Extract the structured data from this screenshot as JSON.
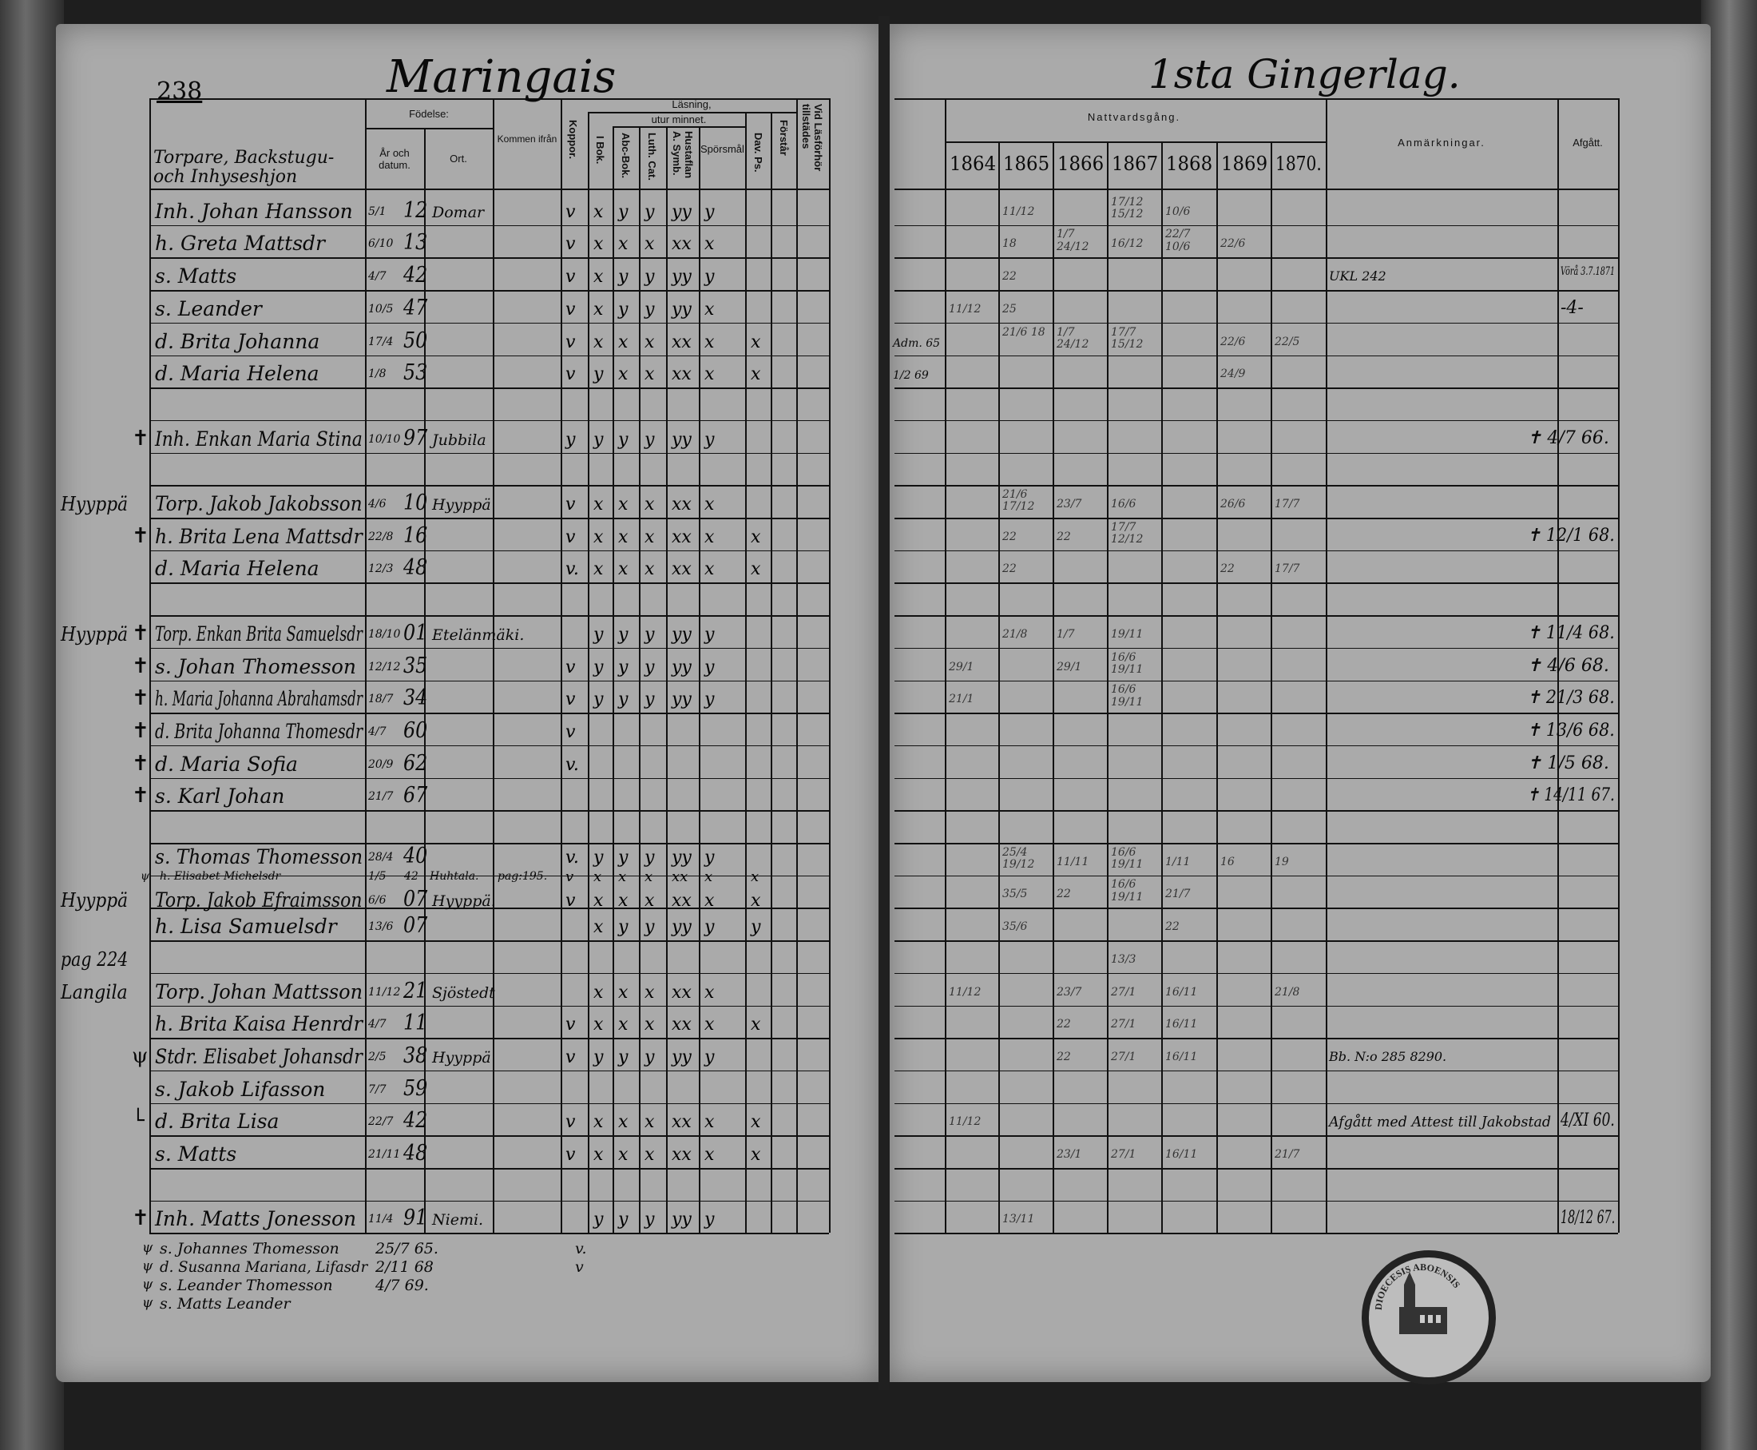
{
  "left_page": {
    "page_number": "238",
    "village": "Maringais",
    "column_title": "Torpare, Backstugu- och Inhyseshjon",
    "headers": {
      "fodelse": "Födelse:",
      "ar": "År och datum.",
      "ort": "Ort.",
      "kommen": "Kommen ifrån",
      "koppor": "Koppor.",
      "lasning": "Läsning,",
      "utur": "utur minnet.",
      "ibok": "I Bok.",
      "abc": "Abc-Bok.",
      "luth": "Luth. Cat.",
      "hust": "Hustaflan A. Symb.",
      "spors": "Spörsmål.",
      "dav": "Dav. Ps.",
      "forstar": "Förstår",
      "vid": "Vid Läsförhör tillstädes"
    },
    "rows": [
      {
        "name": "Inh. Johan Hansson",
        "dm": "5/1",
        "yr": "12",
        "ort": "Domar",
        "kop": "v",
        "r": [
          "x",
          "y",
          "y",
          "yy",
          "y",
          "",
          ""
        ]
      },
      {
        "name": "h. Greta Mattsdr",
        "dm": "6/10",
        "yr": "13",
        "kop": "v",
        "r": [
          "x",
          "x",
          "x",
          "xx",
          "x",
          "",
          ""
        ]
      },
      {
        "name": "s. Matts",
        "dm": "4/7",
        "yr": "42",
        "kop": "v",
        "r": [
          "x",
          "y",
          "y",
          "yy",
          "y",
          "",
          ""
        ]
      },
      {
        "name": "s. Leander",
        "dm": "10/5",
        "yr": "47",
        "kop": "v",
        "r": [
          "x",
          "y",
          "y",
          "yy",
          "x",
          "",
          ""
        ]
      },
      {
        "name": "d. Brita Johanna",
        "dm": "17/4",
        "yr": "50",
        "kop": "v",
        "r": [
          "x",
          "x",
          "x",
          "xx",
          "x",
          "x",
          ""
        ]
      },
      {
        "name": "d. Maria Helena",
        "dm": "1/8",
        "yr": "53",
        "kop": "v",
        "r": [
          "y",
          "x",
          "x",
          "xx",
          "x",
          "x",
          ""
        ]
      },
      {},
      {
        "mark": "✝",
        "name": "Inh. Enkan Maria Stina",
        "dm": "10/10",
        "yr": "97",
        "ort": "Jubbila",
        "kop": "y",
        "r": [
          "y",
          "y",
          "y",
          "yy",
          "y",
          "",
          ""
        ]
      },
      {},
      {
        "margin": "Hyyppä",
        "name": "Torp. Jakob Jakobsson",
        "dm": "4/6",
        "yr": "10",
        "ort": "Hyyppä",
        "kop": "v",
        "r": [
          "x",
          "x",
          "x",
          "xx",
          "x",
          "",
          ""
        ]
      },
      {
        "mark": "✝",
        "name": "h. Brita Lena Mattsdr",
        "dm": "22/8",
        "yr": "16",
        "kop": "v",
        "r": [
          "x",
          "x",
          "x",
          "xx",
          "x",
          "x",
          ""
        ]
      },
      {
        "name": "d. Maria Helena",
        "dm": "12/3",
        "yr": "48",
        "kop": "v.",
        "r": [
          "x",
          "x",
          "x",
          "xx",
          "x",
          "x",
          ""
        ]
      },
      {},
      {
        "margin": "Hyyppä",
        "mark": "✝",
        "name": "Torp. Enkan Brita Samuelsdr",
        "dm": "18/10",
        "yr": "01",
        "ort": "Etelänmäki.",
        "kop": "",
        "r": [
          "y",
          "y",
          "y",
          "yy",
          "y",
          "",
          ""
        ]
      },
      {
        "mark": "✝",
        "name": "s. Johan Thomesson",
        "dm": "12/12",
        "yr": "35",
        "kop": "v",
        "r": [
          "y",
          "y",
          "y",
          "yy",
          "y",
          "",
          ""
        ]
      },
      {
        "mark": "✝",
        "name": "h. Maria Johanna Abrahamsdr",
        "dm": "18/7",
        "yr": "34",
        "kop": "v",
        "r": [
          "y",
          "y",
          "y",
          "yy",
          "y",
          "",
          ""
        ]
      },
      {
        "mark": "✝",
        "name": "d. Brita Johanna Thomesdr",
        "dm": "4/7",
        "yr": "60",
        "kop": "v",
        "r": [
          "",
          "",
          "",
          "",
          "",
          "",
          ""
        ]
      },
      {
        "mark": "✝",
        "name": "d. Maria Sofia",
        "dm": "20/9",
        "yr": "62",
        "kop": "v.",
        "r": [
          "",
          "",
          "",
          "",
          "",
          "",
          ""
        ]
      },
      {
        "mark": "✝",
        "name": "s. Karl Johan",
        "dm": "21/7",
        "yr": "67",
        "kop": "",
        "r": [
          "",
          "",
          "",
          "",
          "",
          "",
          ""
        ]
      },
      {},
      {
        "name": "s. Thomas Thomesson",
        "dm": "28/4",
        "yr": "40",
        "kop": "v.",
        "r": [
          "y",
          "y",
          "y",
          "yy",
          "y",
          "",
          ""
        ]
      },
      {
        "margin": "Hyyppä",
        "name": "Torp. Jakob Efraimsson",
        "dm": "6/6",
        "yr": "07",
        "ort": "Hyyppä.",
        "kop": "v",
        "r": [
          "x",
          "x",
          "x",
          "xx",
          "x",
          "x",
          ""
        ]
      },
      {
        "name": "h. Lisa Samuelsdr",
        "dm": "13/6",
        "yr": "07",
        "kop": "",
        "r": [
          "x",
          "y",
          "y",
          "yy",
          "y",
          "y",
          ""
        ]
      },
      {
        "margin": "pag 224"
      },
      {
        "margin": "Langila",
        "name": "Torp. Johan Mattsson",
        "dm": "11/12",
        "yr": "21",
        "ort": "Sjöstedt",
        "kop": "",
        "r": [
          "x",
          "x",
          "x",
          "xx",
          "x",
          "",
          ""
        ]
      },
      {
        "name": "h. Brita Kaisa Henrdr",
        "dm": "4/7",
        "yr": "11",
        "kop": "v",
        "r": [
          "x",
          "x",
          "x",
          "xx",
          "x",
          "x",
          ""
        ]
      },
      {
        "mark": "ψ",
        "name": "Stdr. Elisabet Johansdr",
        "dm": "2/5",
        "yr": "38",
        "ort": "Hyyppä",
        "kop": "v",
        "r": [
          "y",
          "y",
          "y",
          "yy",
          "y",
          "",
          ""
        ]
      },
      {
        "name": "s. Jakob Lifasson",
        "dm": "7/7",
        "yr": "59",
        "kop": "",
        "r": [
          "",
          "",
          "",
          "",
          "",
          "",
          ""
        ]
      },
      {
        "mark": "└",
        "name": "d. Brita Lisa",
        "dm": "22/7",
        "yr": "42",
        "kop": "v",
        "r": [
          "x",
          "x",
          "x",
          "xx",
          "x",
          "x",
          ""
        ]
      },
      {
        "name": "s. Matts",
        "dm": "21/11",
        "yr": "48",
        "kop": "v",
        "r": [
          "x",
          "x",
          "x",
          "xx",
          "x",
          "x",
          ""
        ]
      },
      {},
      {
        "mark": "✝",
        "name": "Inh. Matts Jonesson",
        "dm": "11/4",
        "yr": "91",
        "ort": "Niemi.",
        "kop": "",
        "r": [
          "y",
          "y",
          "y",
          "yy",
          "y",
          "",
          ""
        ]
      }
    ],
    "insert": {
      "mark": "ψ",
      "name": "h. Elisabet Michelsdr",
      "dm": "1/5",
      "yr": "42",
      "ort": "Huhtala.",
      "kommen": "pag:195.",
      "kop": "v",
      "r": [
        "x",
        "x",
        "x",
        "xx",
        "x",
        "x",
        ""
      ]
    },
    "additions": [
      {
        "mark": "ψ",
        "name": "s. Johannes Thomesson",
        "date": "25/7 65.",
        "kop": "v."
      },
      {
        "mark": "ψ",
        "name": "d. Susanna Mariana, Lifasdr",
        "date": "2/11 68",
        "kop": "v"
      },
      {
        "mark": "ψ",
        "name": "s. Leander Thomesson",
        "date": "4/7 69.",
        "kop": ""
      },
      {
        "mark": "ψ",
        "name": "s. Matts Leander",
        "date": "",
        "kop": ""
      }
    ]
  },
  "right_page": {
    "title": "1sta Gingerlag.",
    "headers": {
      "nattvard": "Nattvardsgång.",
      "years": [
        "1864",
        "1865",
        "1866",
        "1867",
        "1868",
        "1869",
        "1870."
      ],
      "anm": "Anmärkningar.",
      "afgatt": "Afgått."
    },
    "rows": [
      {
        "n": [
          "",
          "11/12",
          "",
          "17/12 15/12",
          "10/6",
          "",
          ""
        ]
      },
      {
        "n": [
          "",
          "18",
          "1/7 24/12",
          "16/12",
          "22/7 10/6",
          "22/6",
          ""
        ]
      },
      {
        "n": [
          "",
          "22",
          "",
          "",
          "",
          "",
          ""
        ],
        "anm": "UKL 242",
        "afg": "Vörå 3.7.1871"
      },
      {
        "n": [
          "11/12",
          "25",
          "",
          "",
          "",
          "",
          ""
        ],
        "afg": "-4-"
      },
      {
        "note": "Adm. 65",
        "n": [
          "",
          "21/6 18",
          "1/7 24/12",
          "17/7 15/12",
          "",
          "22/6",
          "22/5"
        ]
      },
      {
        "note": "1/2 69",
        "n": [
          "",
          "",
          "",
          "",
          "",
          "24/9",
          ""
        ]
      },
      {},
      {
        "afg": "✝ 4/7 66."
      },
      {},
      {
        "n": [
          "",
          "21/6 17/12",
          "23/7",
          "16/6",
          "",
          "26/6",
          "17/7"
        ]
      },
      {
        "n": [
          "",
          "22",
          "22",
          "17/7 12/12",
          "",
          "",
          ""
        ],
        "afg": "✝ 12/1 68."
      },
      {
        "n": [
          "",
          "22",
          "",
          "",
          "",
          "22",
          "17/7"
        ]
      },
      {},
      {
        "n": [
          "",
          "21/8",
          "1/7",
          "19/11",
          "",
          "",
          ""
        ],
        "afg": "✝ 11/4 68."
      },
      {
        "n": [
          "29/1",
          "",
          "29/1",
          "16/6 19/11",
          "",
          "",
          ""
        ],
        "afg": "✝ 4/6 68."
      },
      {
        "n": [
          "21/1",
          "",
          "",
          "16/6 19/11",
          "",
          "",
          ""
        ],
        "afg": "✝ 21/3 68."
      },
      {
        "afg": "✝ 13/6 68."
      },
      {
        "afg": "✝ 1/5 68."
      },
      {
        "afg": "✝ 14/11 67."
      },
      {},
      {
        "n": [
          "",
          "25/4 19/12",
          "11/11",
          "16/6 19/11",
          "1/11",
          "16",
          "19"
        ]
      },
      {
        "n": [
          "",
          "35/5",
          "22",
          "16/6 19/11",
          "21/7",
          "",
          ""
        ]
      },
      {
        "n": [
          "",
          "35/6",
          "",
          "",
          "22",
          "",
          ""
        ]
      },
      {
        "n": [
          "",
          "",
          "",
          "13/3",
          "",
          "",
          ""
        ]
      },
      {
        "n": [
          "11/12",
          "",
          "23/7",
          "27/1",
          "16/11",
          "",
          "21/8"
        ]
      },
      {
        "n": [
          "",
          "",
          "22",
          "27/1",
          "16/11",
          "",
          ""
        ]
      },
      {
        "n": [
          "",
          "",
          "22",
          "27/1",
          "16/11",
          "",
          ""
        ],
        "anm": "Bb. N:o 285 8290."
      },
      {},
      {
        "n": [
          "11/12",
          "",
          "",
          "",
          "",
          "",
          ""
        ],
        "anm": "Afgått med Attest till Jakobstad",
        "afg": "4/XI 60."
      },
      {
        "n": [
          "",
          "",
          "23/1",
          "27/1",
          "16/11",
          "",
          "21/7"
        ]
      },
      {},
      {
        "n": [
          "",
          "13/11",
          "",
          "",
          "",
          "",
          ""
        ],
        "afg": "18/12 67."
      }
    ]
  },
  "stamp_text": "DIOECESIS ABOENSIS"
}
